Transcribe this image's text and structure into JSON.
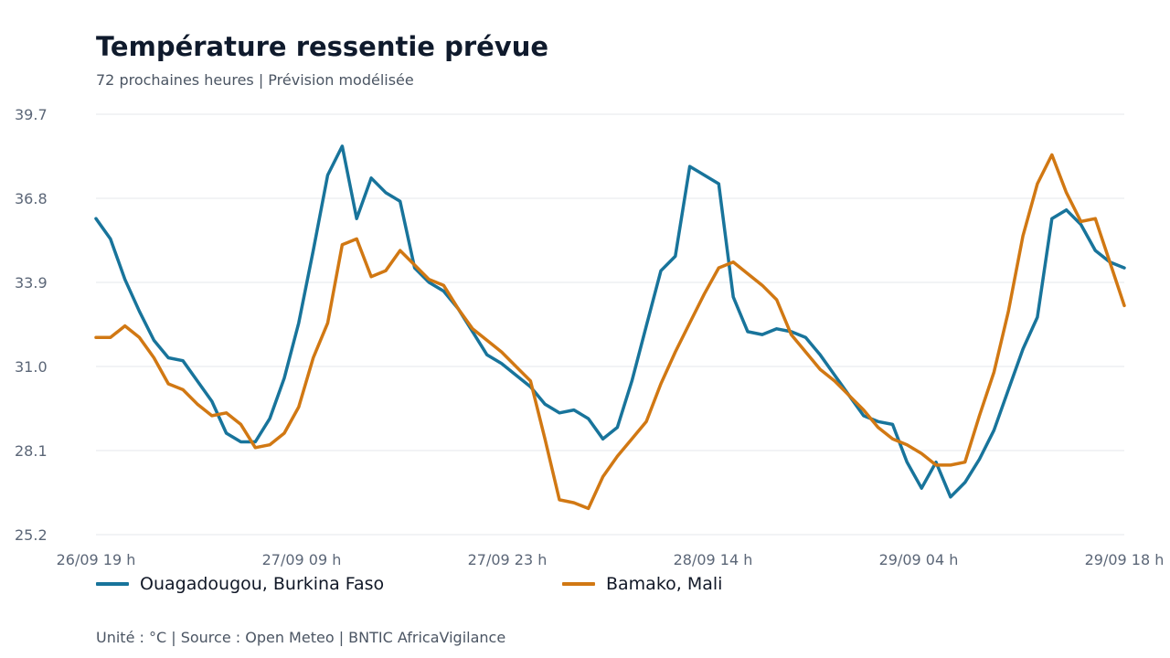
{
  "header": {
    "title": "Température ressentie prévue",
    "subtitle": "72 prochaines heures | Prévision modélisée"
  },
  "footer": {
    "text": "Unité : °C | Source : Open Meteo | BNTIC AfricaVigilance"
  },
  "chart_data": {
    "type": "line",
    "title": "Température ressentie prévue",
    "subtitle": "72 prochaines heures | Prévision modélisée",
    "xlabel": "",
    "ylabel": "",
    "x_start": "26/09 19 h",
    "x_end": "29/09 18 h",
    "x_tick_labels": [
      "26/09 19 h",
      "27/09 09 h",
      "27/09 23 h",
      "28/09 14 h",
      "29/09 04 h",
      "29/09 18 h"
    ],
    "y_ticks": [
      25.2,
      28.1,
      31.0,
      33.9,
      36.8,
      39.7
    ],
    "y_tick_labels": [
      "25.2",
      "28.1",
      "31.0",
      "33.9",
      "36.8",
      "39.7"
    ],
    "ylim": [
      25.2,
      39.7
    ],
    "grid": true,
    "legend_position": "bottom",
    "unit": "°C",
    "series": [
      {
        "name": "Ouagadougou, Burkina Faso",
        "color": "#18749b",
        "values": [
          36.1,
          35.4,
          34.0,
          32.9,
          31.9,
          31.3,
          31.2,
          30.5,
          29.8,
          28.7,
          28.4,
          28.4,
          29.2,
          30.6,
          32.5,
          35.0,
          37.6,
          38.6,
          36.1,
          37.5,
          37.0,
          36.7,
          34.4,
          33.9,
          33.6,
          33.0,
          32.2,
          31.4,
          31.1,
          30.7,
          30.3,
          29.7,
          29.4,
          29.5,
          29.2,
          28.5,
          28.9,
          30.5,
          32.4,
          34.3,
          34.8,
          37.9,
          37.6,
          37.3,
          33.4,
          32.2,
          32.1,
          32.3,
          32.2,
          32.0,
          31.4,
          30.7,
          30.0,
          29.3,
          29.1,
          29.0,
          27.7,
          26.8,
          27.7,
          26.5,
          27.0,
          27.8,
          28.8,
          30.2,
          31.6,
          32.7,
          36.1,
          36.4,
          35.9,
          35.0,
          34.6,
          34.4
        ]
      },
      {
        "name": "Bamako, Mali",
        "color": "#d17813",
        "values": [
          32.0,
          32.0,
          32.4,
          32.0,
          31.3,
          30.4,
          30.2,
          29.7,
          29.3,
          29.4,
          29.0,
          28.2,
          28.3,
          28.7,
          29.6,
          31.3,
          32.5,
          35.2,
          35.4,
          34.1,
          34.3,
          35.0,
          34.5,
          34.0,
          33.8,
          33.0,
          32.3,
          31.9,
          31.5,
          31.0,
          30.5,
          28.5,
          26.4,
          26.3,
          26.1,
          27.2,
          27.9,
          28.5,
          29.1,
          30.4,
          31.5,
          32.5,
          33.5,
          34.4,
          34.6,
          34.2,
          33.8,
          33.3,
          32.1,
          31.5,
          30.9,
          30.5,
          30.0,
          29.5,
          28.9,
          28.5,
          28.3,
          28.0,
          27.6,
          27.6,
          27.7,
          29.3,
          30.8,
          32.9,
          35.5,
          37.3,
          38.3,
          37.0,
          36.0,
          36.1,
          34.6,
          33.1
        ]
      }
    ]
  }
}
